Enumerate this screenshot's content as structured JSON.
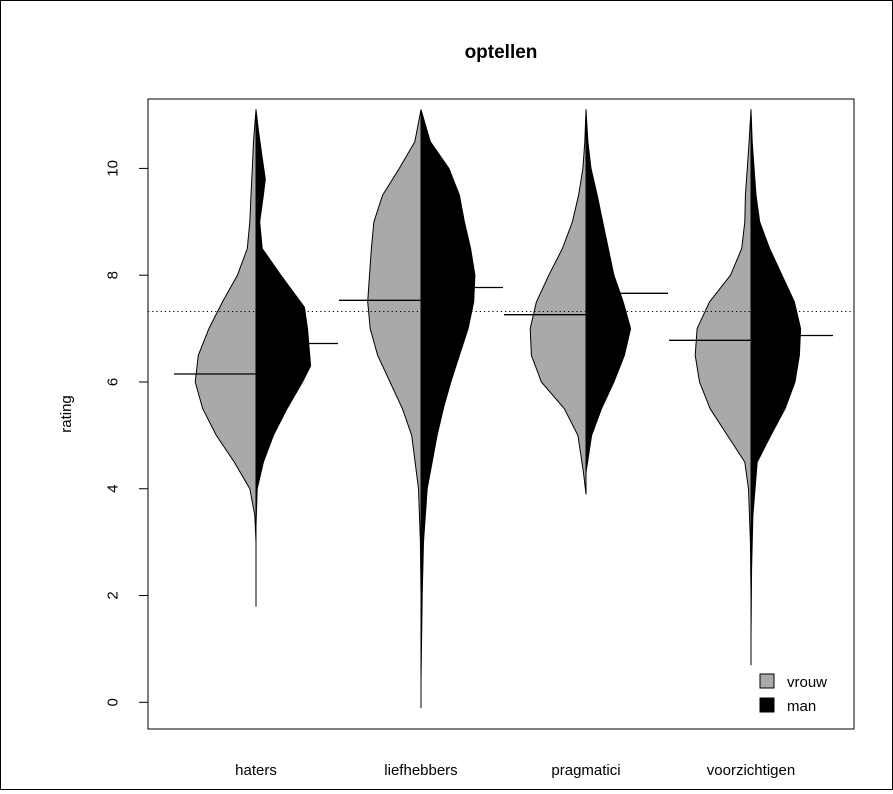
{
  "chart_data": {
    "type": "violin",
    "title": "optellen",
    "xlabel": "",
    "ylabel": "rating",
    "ylim": [
      -0.5,
      11.3
    ],
    "yticks": [
      0,
      2,
      4,
      6,
      8,
      10
    ],
    "categories": [
      "haters",
      "liefhebbers",
      "pragmatici",
      "voorzichtigen"
    ],
    "reference_line": {
      "y": 7.32,
      "style": "dotted"
    },
    "legend": {
      "position": "bottom-right",
      "items": [
        {
          "name": "vrouw",
          "color": "#a9a9a9"
        },
        {
          "name": "man",
          "color": "#000000"
        }
      ]
    },
    "series": [
      {
        "name": "vrouw",
        "color": "#a9a9a9",
        "side": "left",
        "means": [
          6.15,
          7.53,
          7.26,
          6.78
        ],
        "ranges": [
          [
            1.8,
            11.1
          ],
          [
            -0.1,
            11.1
          ],
          [
            3.9,
            11.1
          ],
          [
            0.7,
            11.1
          ]
        ],
        "density_profiles": [
          [
            [
              1.8,
              0.0
            ],
            [
              3.0,
              0.0
            ],
            [
              3.5,
              0.02
            ],
            [
              4.0,
              0.1
            ],
            [
              4.5,
              0.35
            ],
            [
              5.0,
              0.64
            ],
            [
              5.5,
              0.86
            ],
            [
              6.0,
              0.98
            ],
            [
              6.5,
              0.93
            ],
            [
              7.0,
              0.76
            ],
            [
              7.5,
              0.54
            ],
            [
              8.0,
              0.3
            ],
            [
              8.5,
              0.14
            ],
            [
              9.0,
              0.1
            ],
            [
              9.5,
              0.08
            ],
            [
              10.0,
              0.06
            ],
            [
              10.5,
              0.04
            ],
            [
              11.1,
              0.0
            ]
          ],
          [
            [
              -0.1,
              0.0
            ],
            [
              2.0,
              0.0
            ],
            [
              3.0,
              0.01
            ],
            [
              4.0,
              0.04
            ],
            [
              5.0,
              0.15
            ],
            [
              5.5,
              0.3
            ],
            [
              6.0,
              0.5
            ],
            [
              6.5,
              0.7
            ],
            [
              7.0,
              0.82
            ],
            [
              7.5,
              0.86
            ],
            [
              8.0,
              0.83
            ],
            [
              8.5,
              0.8
            ],
            [
              9.0,
              0.76
            ],
            [
              9.5,
              0.62
            ],
            [
              10.0,
              0.35
            ],
            [
              10.5,
              0.1
            ],
            [
              11.1,
              0.0
            ]
          ],
          [
            [
              3.9,
              0.0
            ],
            [
              4.3,
              0.04
            ],
            [
              5.0,
              0.13
            ],
            [
              5.5,
              0.35
            ],
            [
              6.0,
              0.72
            ],
            [
              6.5,
              0.88
            ],
            [
              7.0,
              0.9
            ],
            [
              7.5,
              0.8
            ],
            [
              8.0,
              0.6
            ],
            [
              8.5,
              0.38
            ],
            [
              9.0,
              0.22
            ],
            [
              9.5,
              0.12
            ],
            [
              10.0,
              0.05
            ],
            [
              10.5,
              0.02
            ],
            [
              11.1,
              0.0
            ]
          ],
          [
            [
              0.7,
              0.0
            ],
            [
              2.0,
              0.0
            ],
            [
              3.0,
              0.01
            ],
            [
              4.0,
              0.04
            ],
            [
              4.5,
              0.1
            ],
            [
              5.0,
              0.38
            ],
            [
              5.5,
              0.66
            ],
            [
              6.0,
              0.83
            ],
            [
              6.5,
              0.9
            ],
            [
              7.0,
              0.87
            ],
            [
              7.5,
              0.67
            ],
            [
              8.0,
              0.33
            ],
            [
              8.5,
              0.15
            ],
            [
              9.0,
              0.1
            ],
            [
              9.5,
              0.09
            ],
            [
              10.0,
              0.06
            ],
            [
              10.5,
              0.03
            ],
            [
              11.1,
              0.0
            ]
          ]
        ]
      },
      {
        "name": "man",
        "color": "#000000",
        "side": "right",
        "means": [
          6.72,
          7.77,
          7.66,
          6.87
        ],
        "ranges": [
          [
            3.3,
            11.1
          ],
          [
            0.4,
            11.1
          ],
          [
            4.3,
            11.1
          ],
          [
            1.2,
            11.1
          ]
        ],
        "density_profiles": [
          [
            [
              3.3,
              0.0
            ],
            [
              4.0,
              0.02
            ],
            [
              4.5,
              0.12
            ],
            [
              5.0,
              0.28
            ],
            [
              5.5,
              0.5
            ],
            [
              6.0,
              0.75
            ],
            [
              6.3,
              0.88
            ],
            [
              6.6,
              0.86
            ],
            [
              7.0,
              0.83
            ],
            [
              7.4,
              0.78
            ],
            [
              8.0,
              0.4
            ],
            [
              8.5,
              0.1
            ],
            [
              9.0,
              0.06
            ],
            [
              9.5,
              0.12
            ],
            [
              9.8,
              0.15
            ],
            [
              10.2,
              0.1
            ],
            [
              10.7,
              0.04
            ],
            [
              11.1,
              0.0
            ]
          ],
          [
            [
              0.4,
              0.0
            ],
            [
              2.0,
              0.02
            ],
            [
              3.0,
              0.04
            ],
            [
              4.0,
              0.1
            ],
            [
              5.0,
              0.26
            ],
            [
              5.5,
              0.36
            ],
            [
              6.0,
              0.48
            ],
            [
              6.5,
              0.62
            ],
            [
              7.0,
              0.76
            ],
            [
              7.5,
              0.85
            ],
            [
              8.0,
              0.87
            ],
            [
              8.5,
              0.8
            ],
            [
              9.0,
              0.7
            ],
            [
              9.5,
              0.62
            ],
            [
              10.0,
              0.45
            ],
            [
              10.5,
              0.15
            ],
            [
              11.1,
              0.0
            ]
          ],
          [
            [
              4.3,
              0.0
            ],
            [
              5.0,
              0.09
            ],
            [
              5.5,
              0.25
            ],
            [
              6.0,
              0.45
            ],
            [
              6.5,
              0.62
            ],
            [
              7.0,
              0.72
            ],
            [
              7.5,
              0.6
            ],
            [
              8.0,
              0.45
            ],
            [
              8.5,
              0.36
            ],
            [
              9.0,
              0.27
            ],
            [
              9.5,
              0.18
            ],
            [
              10.0,
              0.08
            ],
            [
              10.5,
              0.03
            ],
            [
              11.1,
              0.0
            ]
          ],
          [
            [
              1.2,
              0.0
            ],
            [
              2.5,
              0.01
            ],
            [
              3.5,
              0.03
            ],
            [
              4.5,
              0.1
            ],
            [
              5.0,
              0.32
            ],
            [
              5.5,
              0.55
            ],
            [
              6.0,
              0.71
            ],
            [
              6.5,
              0.78
            ],
            [
              7.0,
              0.8
            ],
            [
              7.5,
              0.7
            ],
            [
              8.0,
              0.5
            ],
            [
              8.5,
              0.3
            ],
            [
              9.0,
              0.14
            ],
            [
              9.5,
              0.08
            ],
            [
              10.0,
              0.05
            ],
            [
              10.5,
              0.02
            ],
            [
              11.1,
              0.0
            ]
          ]
        ]
      }
    ]
  }
}
